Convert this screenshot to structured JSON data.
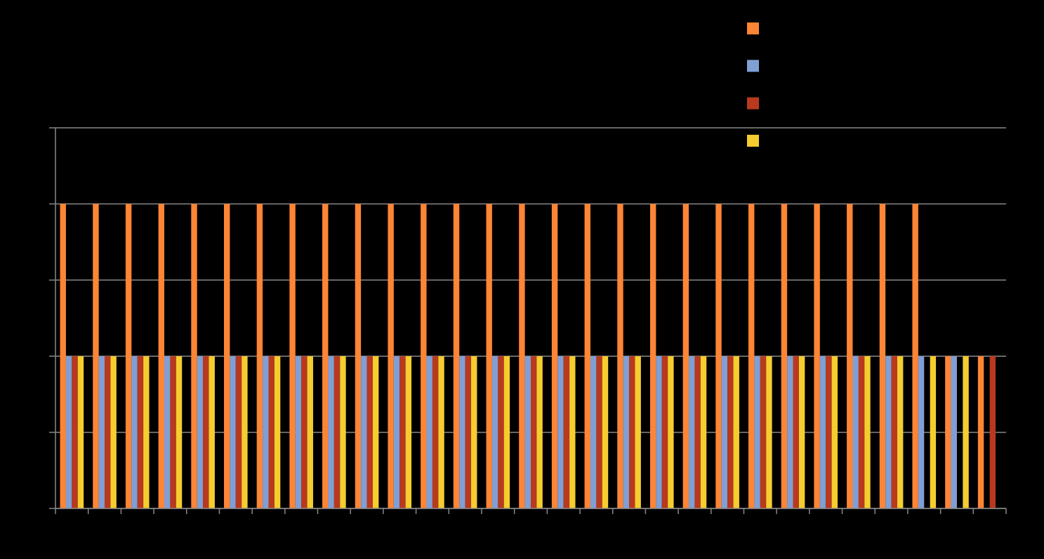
{
  "chart_data": {
    "type": "bar",
    "categories": [
      null,
      null,
      null,
      null,
      null,
      null,
      null,
      null,
      null,
      null,
      null,
      null,
      null,
      null,
      null,
      null,
      null,
      null,
      null,
      null,
      null,
      null,
      null,
      null,
      null,
      null,
      null,
      null,
      null
    ],
    "series": [
      {
        "color": "#fd8535",
        "values": [
          4,
          4,
          4,
          4,
          4,
          4,
          4,
          4,
          4,
          4,
          4,
          4,
          4,
          4,
          4,
          4,
          4,
          4,
          4,
          4,
          4,
          4,
          4,
          4,
          4,
          4,
          4,
          2,
          2
        ]
      },
      {
        "color": "#7f9fd5",
        "values": [
          2,
          2,
          2,
          2,
          2,
          2,
          2,
          2,
          2,
          2,
          2,
          2,
          2,
          2,
          2,
          2,
          2,
          2,
          2,
          2,
          2,
          2,
          2,
          2,
          2,
          2,
          2,
          2,
          null
        ]
      },
      {
        "color": "#b8391e",
        "values": [
          2,
          2,
          2,
          2,
          2,
          2,
          2,
          2,
          2,
          2,
          2,
          2,
          2,
          2,
          2,
          2,
          2,
          2,
          2,
          2,
          2,
          2,
          2,
          2,
          2,
          2,
          null,
          null,
          2
        ]
      },
      {
        "color": "#f5cd2f",
        "values": [
          2,
          2,
          2,
          2,
          2,
          2,
          2,
          2,
          2,
          2,
          2,
          2,
          2,
          2,
          2,
          2,
          2,
          2,
          2,
          2,
          2,
          2,
          2,
          2,
          2,
          2,
          2,
          2,
          null
        ]
      }
    ],
    "ylim": [
      0,
      5
    ],
    "yticks": [
      0,
      1,
      2,
      3,
      4,
      5
    ],
    "grid": true
  }
}
